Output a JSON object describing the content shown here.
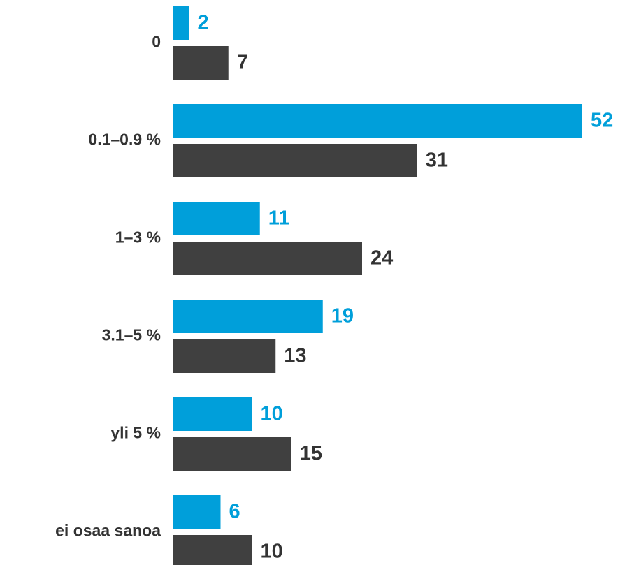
{
  "chart_data": {
    "type": "bar",
    "orientation": "horizontal",
    "categories": [
      "0",
      "0.1–0.9 %",
      "1–3 %",
      "3.1–5 %",
      "yli 5 %",
      "ei osaa sanoa"
    ],
    "series": [
      {
        "values": [
          2,
          52,
          11,
          19,
          10,
          6
        ],
        "color": "#009fda"
      },
      {
        "values": [
          7,
          31,
          24,
          13,
          15,
          10
        ],
        "color": "#404040"
      }
    ],
    "xlim": [
      0,
      52
    ],
    "data_labels": true,
    "grid": false,
    "legend": "none"
  }
}
